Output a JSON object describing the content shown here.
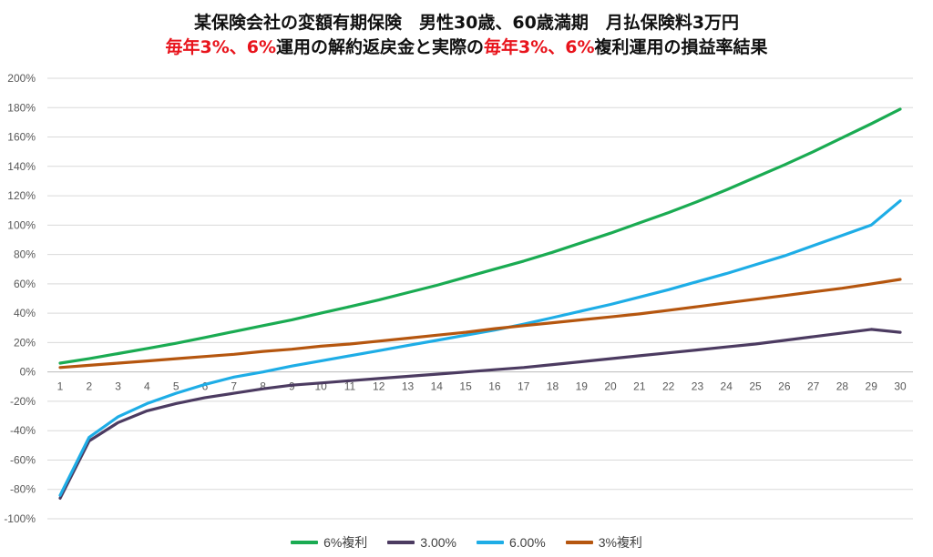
{
  "title": {
    "line1": "某保険会社の変額有期保険　男性30歳、60歳満期　月払保険料3万円",
    "line2_parts": [
      "毎年3%、6%",
      "運用の解約返戻金と実際の",
      "毎年3%、6%",
      "複利運用の損益率結果"
    ]
  },
  "colors": {
    "six_pct_compound": "#1aab52",
    "three_pct": "#4c3b61",
    "six_pct": "#1eade6",
    "three_pct_compound": "#b5560f",
    "title_red": "#e8141c",
    "grid": "#d9d9d9"
  },
  "chart_data": {
    "type": "line",
    "title": "某保険会社の変額有期保険　男性30歳、60歳満期　月払保険料3万円 / 毎年3%、6%運用の解約返戻金と実際の毎年3%、6%複利運用の損益率結果",
    "xlabel": "",
    "ylabel": "",
    "x": [
      1,
      2,
      3,
      4,
      5,
      6,
      7,
      8,
      9,
      10,
      11,
      12,
      13,
      14,
      15,
      16,
      17,
      18,
      19,
      20,
      21,
      22,
      23,
      24,
      25,
      26,
      27,
      28,
      29,
      30
    ],
    "ylim": [
      -100,
      200
    ],
    "yticks": [
      -100,
      -80,
      -60,
      -40,
      -20,
      0,
      20,
      40,
      60,
      80,
      100,
      120,
      140,
      160,
      180,
      200
    ],
    "ytick_labels": [
      "-100%",
      "-80%",
      "-60%",
      "-40%",
      "-20%",
      "0%",
      "20%",
      "40%",
      "60%",
      "80%",
      "100%",
      "120%",
      "140%",
      "160%",
      "180%",
      "200%"
    ],
    "grid": true,
    "legend_position": "bottom",
    "series": [
      {
        "name": "6%複利",
        "color": "#1aab52",
        "values": [
          6,
          9,
          12.5,
          16,
          19.5,
          23.5,
          27.5,
          31.5,
          35.5,
          40,
          44.5,
          49,
          54,
          59,
          64.5,
          70,
          75.5,
          81.5,
          88,
          94.5,
          101.5,
          108.5,
          116,
          124,
          132.5,
          141,
          150,
          159.5,
          169,
          179
        ]
      },
      {
        "name": "3.00%",
        "color": "#4c3b61",
        "values": [
          -86,
          -47,
          -34.5,
          -26.5,
          -21.5,
          -17.5,
          -14.5,
          -11.5,
          -9,
          -7.5,
          -6,
          -4.5,
          -3,
          -1.5,
          0,
          1.5,
          3,
          5,
          7,
          9,
          11,
          13,
          15,
          17,
          19,
          21.5,
          24,
          26.5,
          29,
          27
        ]
      },
      {
        "name": "6.00%",
        "color": "#1eade6",
        "values": [
          -84,
          -44.5,
          -30.5,
          -21.5,
          -14.5,
          -8.5,
          -3.5,
          0,
          4,
          7.5,
          11,
          14.5,
          18,
          21.5,
          25,
          28.5,
          32.5,
          37,
          41.5,
          46,
          51,
          56,
          61.5,
          67,
          73,
          79,
          86,
          93,
          100,
          116.5
        ]
      },
      {
        "name": "3%複利",
        "color": "#b5560f",
        "values": [
          3,
          4.5,
          6,
          7.5,
          9,
          10.5,
          12,
          14,
          15.5,
          17.5,
          19,
          21,
          23,
          25,
          27,
          29.5,
          31.5,
          33.5,
          35.5,
          37.5,
          39.5,
          42,
          44.5,
          47,
          49.5,
          52,
          54.5,
          57,
          60,
          63
        ]
      }
    ]
  }
}
